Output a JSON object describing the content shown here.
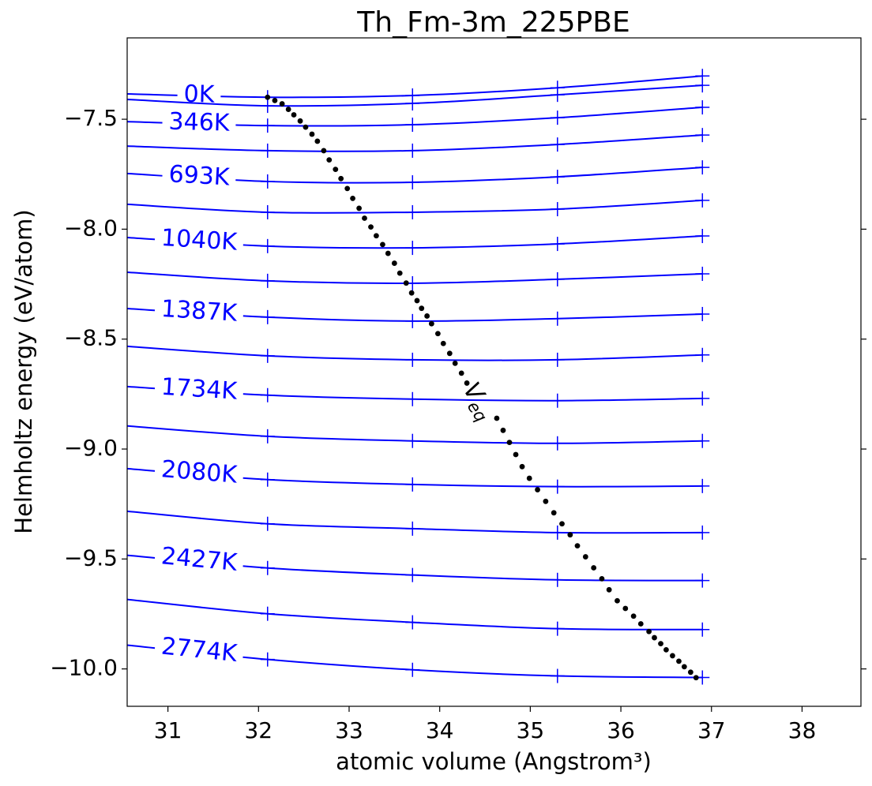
{
  "chart_data": {
    "type": "line",
    "title": "Th_Fm-3m_225PBE",
    "xlabel": "atomic volume (Angstrom³)",
    "ylabel": "Helmholtz energy (eV/atom)",
    "xlim": [
      30.55,
      38.65
    ],
    "ylim": [
      -10.17,
      -7.13
    ],
    "xticks": [
      31,
      32,
      33,
      34,
      35,
      36,
      37,
      38
    ],
    "yticks": [
      {
        "value": -7.5,
        "label": "−7.5"
      },
      {
        "value": -8.0,
        "label": "−8.0"
      },
      {
        "value": -8.5,
        "label": "−8.5"
      },
      {
        "value": -9.0,
        "label": "−9.0"
      },
      {
        "value": -9.5,
        "label": "−9.5"
      },
      {
        "value": -10.0,
        "label": "−10.0"
      }
    ],
    "marker": "+",
    "x": [
      30.55,
      32.1,
      33.7,
      35.3,
      36.9
    ],
    "series": [
      {
        "name": "0K",
        "color": "#0000ff",
        "values": [
          -7.385,
          -7.4,
          -7.392,
          -7.357,
          -7.303
        ]
      },
      {
        "color": "#0000ff",
        "values": [
          -7.41,
          -7.439,
          -7.428,
          -7.389,
          -7.346
        ]
      },
      {
        "name": "346K",
        "color": "#0000ff",
        "values": [
          -7.511,
          -7.529,
          -7.525,
          -7.493,
          -7.446
        ]
      },
      {
        "color": "#0000ff",
        "values": [
          -7.622,
          -7.643,
          -7.643,
          -7.615,
          -7.572
        ]
      },
      {
        "name": "693K",
        "color": "#0000ff",
        "values": [
          -7.747,
          -7.783,
          -7.787,
          -7.762,
          -7.719
        ]
      },
      {
        "color": "#0000ff",
        "values": [
          -7.887,
          -7.923,
          -7.923,
          -7.909,
          -7.869
        ]
      },
      {
        "name": "1040K",
        "color": "#0000ff",
        "values": [
          -8.038,
          -8.077,
          -8.085,
          -8.067,
          -8.031
        ]
      },
      {
        "color": "#0000ff",
        "values": [
          -8.196,
          -8.235,
          -8.246,
          -8.228,
          -8.203
        ]
      },
      {
        "name": "1387K",
        "color": "#0000ff",
        "values": [
          -8.361,
          -8.4,
          -8.418,
          -8.407,
          -8.386
        ]
      },
      {
        "color": "#0000ff",
        "values": [
          -8.533,
          -8.576,
          -8.594,
          -8.594,
          -8.572
        ]
      },
      {
        "name": "1734K",
        "color": "#0000ff",
        "values": [
          -8.716,
          -8.755,
          -8.773,
          -8.78,
          -8.77
        ]
      },
      {
        "color": "#0000ff",
        "values": [
          -8.895,
          -8.942,
          -8.963,
          -8.974,
          -8.963
        ]
      },
      {
        "name": "2080K",
        "color": "#0000ff",
        "values": [
          -9.089,
          -9.139,
          -9.161,
          -9.171,
          -9.168
        ]
      },
      {
        "color": "#0000ff",
        "values": [
          -9.283,
          -9.34,
          -9.362,
          -9.38,
          -9.38
        ]
      },
      {
        "name": "2427K",
        "color": "#0000ff",
        "values": [
          -9.483,
          -9.541,
          -9.573,
          -9.595,
          -9.598
        ]
      },
      {
        "color": "#0000ff",
        "values": [
          -9.684,
          -9.749,
          -9.788,
          -9.817,
          -9.821
        ]
      },
      {
        "name": "2774K",
        "color": "#0000ff",
        "values": [
          -9.892,
          -9.957,
          -10.004,
          -10.032,
          -10.039
        ]
      }
    ],
    "points": {
      "color": "#000000",
      "x": [
        32.1,
        32.18,
        32.26,
        32.33,
        32.39,
        32.46,
        32.52,
        32.59,
        32.65,
        32.72,
        32.78,
        32.85,
        32.91,
        32.98,
        33.04,
        33.11,
        33.17,
        33.24,
        33.3,
        33.37,
        33.43,
        33.5,
        33.56,
        33.63,
        33.69,
        33.75,
        33.8,
        33.86,
        33.91,
        33.98,
        34.04,
        34.11,
        34.17,
        34.24,
        34.3,
        34.63,
        34.7,
        34.77,
        34.84,
        34.91,
        34.99,
        35.08,
        35.17,
        35.26,
        35.35,
        35.44,
        35.52,
        35.61,
        35.7,
        35.79,
        35.87,
        35.96,
        36.05,
        36.14,
        36.22,
        36.31,
        36.37,
        36.44,
        36.5,
        36.57,
        36.64,
        36.7,
        36.77,
        36.83
      ],
      "y": [
        -7.4,
        -7.415,
        -7.43,
        -7.455,
        -7.48,
        -7.508,
        -7.536,
        -7.568,
        -7.6,
        -7.643,
        -7.685,
        -7.728,
        -7.77,
        -7.815,
        -7.86,
        -7.905,
        -7.95,
        -7.99,
        -8.03,
        -8.07,
        -8.11,
        -8.155,
        -8.2,
        -8.245,
        -8.29,
        -8.325,
        -8.36,
        -8.395,
        -8.43,
        -8.475,
        -8.52,
        -8.565,
        -8.61,
        -8.655,
        -8.7,
        -8.86,
        -8.915,
        -8.97,
        -9.025,
        -9.08,
        -9.133,
        -9.185,
        -9.238,
        -9.29,
        -9.34,
        -9.39,
        -9.44,
        -9.49,
        -9.54,
        -9.59,
        -9.64,
        -9.69,
        -9.725,
        -9.76,
        -9.795,
        -9.83,
        -9.858,
        -9.885,
        -9.913,
        -9.94,
        -9.965,
        -9.99,
        -10.015,
        -10.04
      ]
    },
    "annotation": {
      "text": "V",
      "subscript": "eq"
    }
  }
}
